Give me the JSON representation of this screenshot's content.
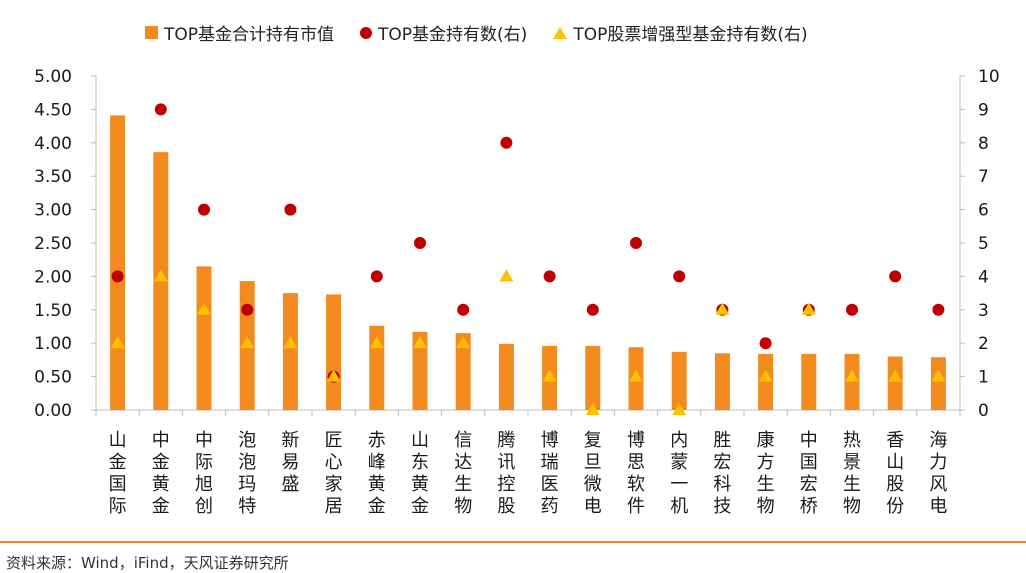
{
  "legend": {
    "bar_label": "TOP基金合计持有市值",
    "dot_label": "TOP基金持有数(右)",
    "tri_label": "TOP股票增强型基金持有数(右)"
  },
  "source": "资料来源：Wind，iFind，天风证券研究所",
  "colors": {
    "bar": "#f28a20",
    "dot": "#c00000",
    "triangle": "#ffc000",
    "axis": "#bfbfbf"
  },
  "chart_data": {
    "type": "bar",
    "categories": [
      "山金国际",
      "中金黄金",
      "中际旭创",
      "泡泡玛特",
      "新易盛",
      "匠心家居",
      "赤峰黄金",
      "山东黄金",
      "信达生物",
      "腾讯控股",
      "博瑞医药",
      "复旦微电",
      "博思软件",
      "内蒙一机",
      "胜宏科技",
      "康方生物",
      "中国宏桥",
      "热景生物",
      "香山股份",
      "海力风电"
    ],
    "series": [
      {
        "name": "TOP基金合计持有市值",
        "axis": "left",
        "type": "bar",
        "values": [
          4.41,
          3.86,
          2.15,
          1.93,
          1.75,
          1.73,
          1.26,
          1.17,
          1.15,
          0.99,
          0.96,
          0.96,
          0.94,
          0.87,
          0.85,
          0.84,
          0.84,
          0.84,
          0.8,
          0.79
        ]
      },
      {
        "name": "TOP基金持有数(右)",
        "axis": "right",
        "type": "scatter-dot",
        "values": [
          4,
          9,
          6,
          3,
          6,
          1,
          4,
          5,
          3,
          8,
          4,
          3,
          5,
          4,
          3,
          2,
          3,
          3,
          4,
          3
        ]
      },
      {
        "name": "TOP股票增强型基金持有数(右)",
        "axis": "right",
        "type": "scatter-triangle",
        "values": [
          2,
          4,
          3,
          2,
          2,
          1,
          2,
          2,
          2,
          4,
          1,
          0,
          1,
          0,
          3,
          1,
          3,
          1,
          1,
          1
        ]
      }
    ],
    "ylim_left": [
      0,
      5
    ],
    "yticks_left": [
      "0.00",
      "0.50",
      "1.00",
      "1.50",
      "2.00",
      "2.50",
      "3.00",
      "3.50",
      "4.00",
      "4.50",
      "5.00"
    ],
    "ylim_right": [
      0,
      10
    ],
    "yticks_right": [
      "0",
      "1",
      "2",
      "3",
      "4",
      "5",
      "6",
      "7",
      "8",
      "9",
      "10"
    ],
    "grid": false,
    "legend_position": "top"
  }
}
